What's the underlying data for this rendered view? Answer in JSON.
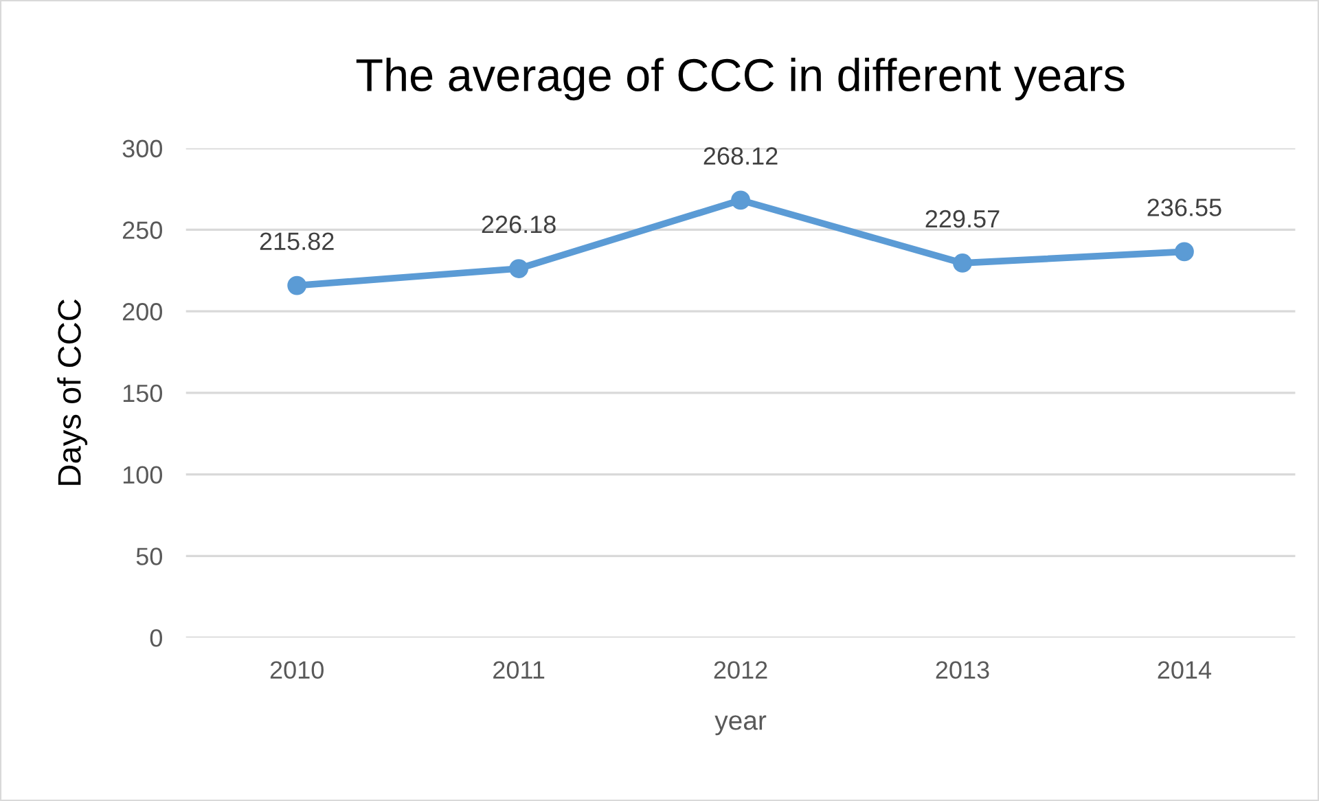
{
  "chart_data": {
    "type": "line",
    "title": "The average of CCC in different years",
    "xlabel": "year",
    "ylabel": "Days of CCC",
    "categories": [
      "2010",
      "2011",
      "2012",
      "2013",
      "2014"
    ],
    "series": [
      {
        "color": "#5b9bd5",
        "values": [
          215.82,
          226.18,
          268.12,
          229.57,
          236.55
        ]
      }
    ],
    "ylim": [
      0,
      300
    ],
    "yticks": [
      0,
      50,
      100,
      150,
      200,
      250,
      300
    ],
    "grid": "y",
    "marker": "circle",
    "line_style": "solid",
    "data_labels": true
  }
}
